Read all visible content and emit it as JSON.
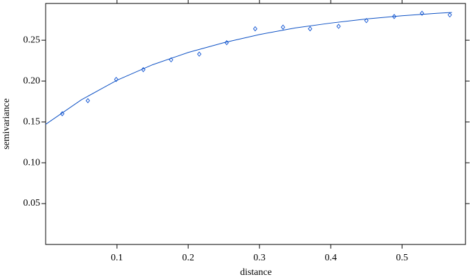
{
  "chart_data": {
    "type": "scatter",
    "x_label": "distance",
    "y_label": "semivariance",
    "x": [
      0.0233,
      0.0592,
      0.099,
      0.137,
      0.176,
      0.2155,
      0.254,
      0.294,
      0.333,
      0.371,
      0.411,
      0.45,
      0.489,
      0.528,
      0.567
    ],
    "y": [
      0.16,
      0.176,
      0.202,
      0.214,
      0.226,
      0.233,
      0.247,
      0.264,
      0.266,
      0.264,
      0.267,
      0.274,
      0.279,
      0.283,
      0.281
    ],
    "color": "#1f5fd6",
    "fit_line": {
      "type": "line",
      "color": "#0a4fc4",
      "x": [
        0,
        0.05,
        0.1,
        0.15,
        0.2,
        0.25,
        0.3,
        0.35,
        0.4,
        0.45,
        0.5,
        0.55,
        0.57
      ],
      "y": [
        0.147,
        0.177,
        0.201,
        0.22,
        0.235,
        0.247,
        0.257,
        0.265,
        0.271,
        0.276,
        0.28,
        0.283,
        0.284
      ]
    },
    "xlim": [
      0,
      0.589
    ],
    "ylim": [
      0,
      0.295
    ],
    "xticks": [
      0.1,
      0.2,
      0.3,
      0.4,
      0.5
    ],
    "yticks": [
      0.05,
      0.1,
      0.15,
      0.2,
      0.25
    ]
  }
}
